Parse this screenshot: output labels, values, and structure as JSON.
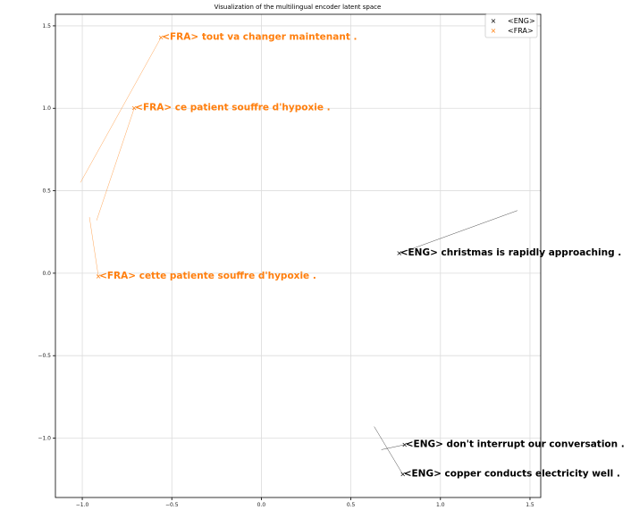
{
  "chart_data": {
    "type": "scatter",
    "title": "Visualization of the multilingual encoder latent space",
    "xlabel": "",
    "ylabel": "",
    "xlim": [
      -1.15,
      1.56
    ],
    "ylim": [
      -1.36,
      1.57
    ],
    "xticks": [
      -1.0,
      -0.5,
      0.0,
      0.5,
      1.0,
      1.5
    ],
    "xtick_labels": [
      "−1.0",
      "−0.5",
      "0.0",
      "0.5",
      "1.0",
      "1.5"
    ],
    "yticks": [
      1.5,
      1.0,
      0.5,
      0.0,
      -0.5,
      -1.0
    ],
    "ytick_labels": [
      "1.5",
      "1.0",
      "0.5",
      "0.0",
      "−0.5",
      "−1.0"
    ],
    "grid": true,
    "legend_position": "top-right",
    "series": [
      {
        "name": "<ENG>",
        "color": "#000000",
        "marker": "x",
        "points": [
          {
            "x": 0.77,
            "y": 0.12,
            "label": "<ENG> christmas is rapidly approaching .",
            "leader": [
              [
                0.77,
                0.12
              ],
              [
                1.43,
                0.38
              ]
            ]
          },
          {
            "x": 0.8,
            "y": -1.04,
            "label": "<ENG> don't interrupt our conversation .",
            "leader": [
              [
                0.8,
                -1.04
              ],
              [
                0.67,
                -1.07
              ]
            ]
          },
          {
            "x": 0.79,
            "y": -1.22,
            "label": "<ENG> copper conducts electricity well .",
            "leader": [
              [
                0.79,
                -1.22
              ],
              [
                0.63,
                -0.93
              ]
            ]
          }
        ]
      },
      {
        "name": "<FRA>",
        "color": "#ff7f0e",
        "marker": "x",
        "points": [
          {
            "x": -0.56,
            "y": 1.43,
            "label": "<FRA> tout va changer maintenant .",
            "leader": [
              [
                -0.56,
                1.43
              ],
              [
                -1.01,
                0.55
              ]
            ]
          },
          {
            "x": -0.71,
            "y": 1.0,
            "label": "<FRA> ce patient souffre d'hypoxie .",
            "leader": [
              [
                -0.71,
                1.0
              ],
              [
                -0.92,
                0.32
              ]
            ]
          },
          {
            "x": -0.91,
            "y": -0.02,
            "label": "<FRA> cette patiente souffre d'hypoxie .",
            "leader": [
              [
                -0.91,
                -0.02
              ],
              [
                -0.96,
                0.34
              ]
            ]
          }
        ]
      }
    ]
  }
}
